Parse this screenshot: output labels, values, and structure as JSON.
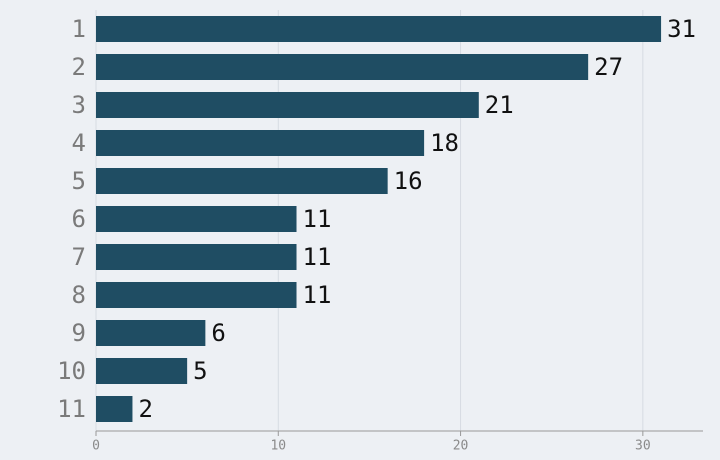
{
  "chart_data": {
    "type": "barh",
    "categories": [
      "1",
      "2",
      "3",
      "4",
      "5",
      "6",
      "7",
      "8",
      "9",
      "10",
      "11"
    ],
    "values": [
      31,
      27,
      21,
      18,
      16,
      11,
      11,
      11,
      6,
      5,
      2
    ],
    "color": "#1f4d63",
    "xlim": [
      0,
      33.3
    ],
    "xticks": [
      0,
      10,
      20,
      30
    ],
    "grid": true
  }
}
